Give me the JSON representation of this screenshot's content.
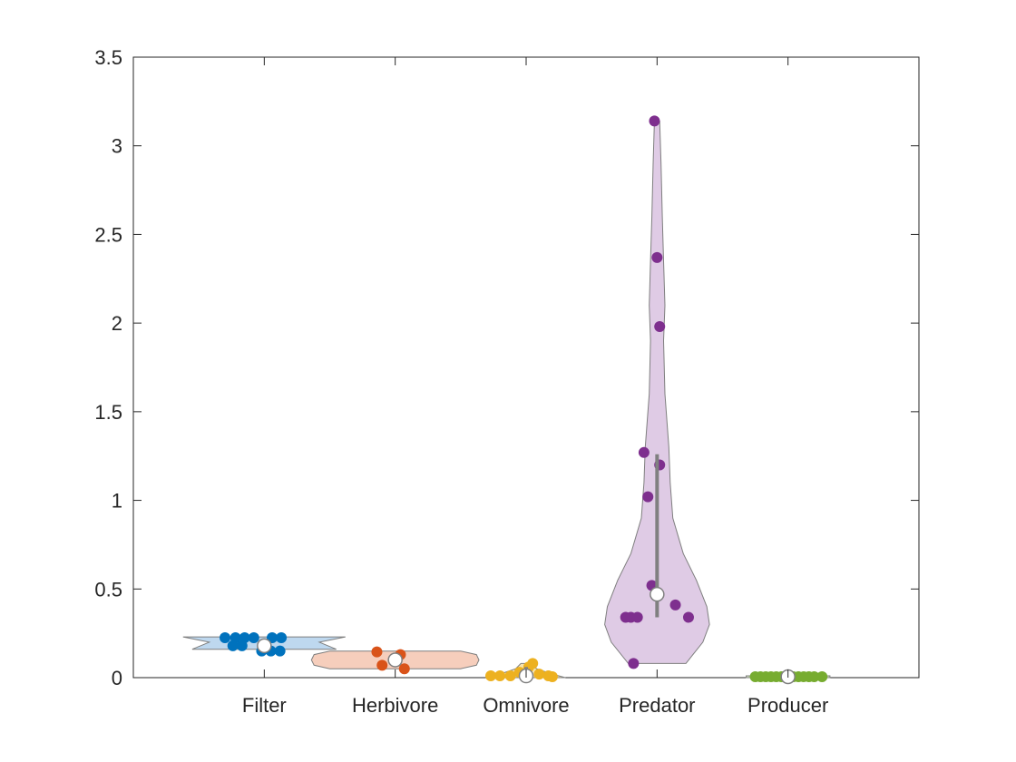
{
  "chart_data": {
    "type": "violin",
    "title": "",
    "xlabel": "",
    "ylabel": "",
    "ylim": [
      0,
      3.5
    ],
    "yticks": [
      0,
      0.5,
      1,
      1.5,
      2,
      2.5,
      3,
      3.5
    ],
    "ytick_labels": [
      "0",
      "0.5",
      "1",
      "1.5",
      "2",
      "2.5",
      "3",
      "3.5"
    ],
    "grid": false,
    "legend": "none",
    "categories": [
      "Filter",
      "Herbivore",
      "Omnivore",
      "Predator",
      "Producer"
    ],
    "groups": [
      {
        "name": "Filter",
        "color": "#0072BD",
        "fill": "#B3D1EC",
        "median": 0.18,
        "q1": 0.16,
        "q3": 0.22,
        "points": [
          {
            "x": -0.3,
            "y": 0.225
          },
          {
            "x": -0.22,
            "y": 0.225
          },
          {
            "x": -0.15,
            "y": 0.225
          },
          {
            "x": -0.08,
            "y": 0.225
          },
          {
            "x": 0.06,
            "y": 0.225
          },
          {
            "x": 0.13,
            "y": 0.225
          },
          {
            "x": -0.24,
            "y": 0.18
          },
          {
            "x": -0.17,
            "y": 0.18
          },
          {
            "x": 0.0,
            "y": 0.17
          },
          {
            "x": -0.02,
            "y": 0.15
          },
          {
            "x": 0.05,
            "y": 0.15
          },
          {
            "x": 0.12,
            "y": 0.15
          }
        ],
        "violin": [
          [
            0.16,
            0.55
          ],
          [
            0.2,
            0.42
          ],
          [
            0.23,
            0.62
          ]
        ]
      },
      {
        "name": "Herbivore",
        "color": "#D95319",
        "fill": "#F4C6B0",
        "median": 0.1,
        "q1": 0.07,
        "q3": 0.13,
        "points": [
          {
            "x": -0.14,
            "y": 0.145
          },
          {
            "x": 0.04,
            "y": 0.13
          },
          {
            "x": -0.1,
            "y": 0.07
          },
          {
            "x": 0.07,
            "y": 0.05
          }
        ],
        "violin": [
          [
            0.05,
            0.5
          ],
          [
            0.07,
            0.62
          ],
          [
            0.1,
            0.64
          ],
          [
            0.13,
            0.62
          ],
          [
            0.15,
            0.5
          ]
        ]
      },
      {
        "name": "Omnivore",
        "color": "#EDB120",
        "fill": "#F7DFA0",
        "median": 0.01,
        "q1": 0.005,
        "q3": 0.06,
        "points": [
          {
            "x": -0.27,
            "y": 0.01
          },
          {
            "x": -0.2,
            "y": 0.01
          },
          {
            "x": -0.12,
            "y": 0.01
          },
          {
            "x": -0.05,
            "y": 0.03
          },
          {
            "x": 0.02,
            "y": 0.06
          },
          {
            "x": 0.05,
            "y": 0.08
          },
          {
            "x": 0.1,
            "y": 0.02
          },
          {
            "x": 0.17,
            "y": 0.01
          },
          {
            "x": 0.2,
            "y": 0.005
          }
        ],
        "violin": [
          [
            0.0,
            0.3
          ],
          [
            0.02,
            0.2
          ],
          [
            0.05,
            0.08
          ],
          [
            0.08,
            0.04
          ]
        ]
      },
      {
        "name": "Predator",
        "color": "#7E2F8E",
        "fill": "#D9C2E0",
        "median": 0.47,
        "q1": 0.34,
        "q3": 1.26,
        "points": [
          {
            "x": -0.18,
            "y": 0.08
          },
          {
            "x": -0.24,
            "y": 0.34
          },
          {
            "x": -0.2,
            "y": 0.34
          },
          {
            "x": -0.15,
            "y": 0.34
          },
          {
            "x": 0.24,
            "y": 0.34
          },
          {
            "x": 0.14,
            "y": 0.41
          },
          {
            "x": -0.04,
            "y": 0.52
          },
          {
            "x": -0.07,
            "y": 1.02
          },
          {
            "x": 0.02,
            "y": 1.2
          },
          {
            "x": -0.1,
            "y": 1.27
          },
          {
            "x": 0.02,
            "y": 1.98
          },
          {
            "x": 0.0,
            "y": 2.37
          },
          {
            "x": -0.02,
            "y": 3.14
          }
        ],
        "violin": [
          [
            0.08,
            0.22
          ],
          [
            0.2,
            0.35
          ],
          [
            0.3,
            0.4
          ],
          [
            0.4,
            0.38
          ],
          [
            0.55,
            0.3
          ],
          [
            0.7,
            0.2
          ],
          [
            0.9,
            0.12
          ],
          [
            1.1,
            0.1
          ],
          [
            1.3,
            0.09
          ],
          [
            1.6,
            0.06
          ],
          [
            1.9,
            0.05
          ],
          [
            2.1,
            0.06
          ],
          [
            2.35,
            0.05
          ],
          [
            2.6,
            0.04
          ],
          [
            2.9,
            0.03
          ],
          [
            3.14,
            0.02
          ]
        ]
      },
      {
        "name": "Producer",
        "color": "#77AC30",
        "fill": "#CFE3B5",
        "median": 0.005,
        "q1": 0.002,
        "q3": 0.008,
        "points": [
          {
            "x": -0.25,
            "y": 0.005
          },
          {
            "x": -0.21,
            "y": 0.005
          },
          {
            "x": -0.17,
            "y": 0.005
          },
          {
            "x": -0.13,
            "y": 0.005
          },
          {
            "x": -0.09,
            "y": 0.005
          },
          {
            "x": -0.05,
            "y": 0.005
          },
          {
            "x": 0.04,
            "y": 0.005
          },
          {
            "x": 0.08,
            "y": 0.005
          },
          {
            "x": 0.12,
            "y": 0.005
          },
          {
            "x": 0.16,
            "y": 0.005
          },
          {
            "x": 0.2,
            "y": 0.005
          },
          {
            "x": 0.26,
            "y": 0.005
          }
        ],
        "violin": [
          [
            0.0,
            0.32
          ],
          [
            0.01,
            0.32
          ]
        ]
      }
    ]
  }
}
